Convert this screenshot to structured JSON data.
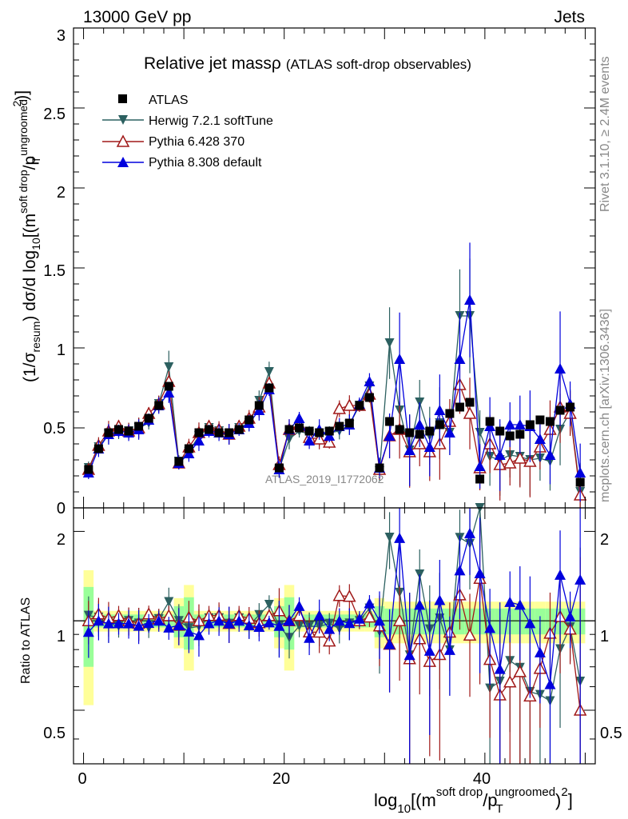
{
  "header": {
    "energy_label": "13000 GeV pp",
    "category_label": "Jets",
    "title_main": "Relative jet mass",
    "title_sym": "ρ",
    "title_sub": "(ATLAS soft-drop observables)",
    "side_rivet": "Rivet 3.1.10, ≥ 2.4M events",
    "side_mcplots": "mcplots.cern.ch [arXiv:1306.3436]",
    "watermark": "ATLAS_2019_I1772062"
  },
  "legend": {
    "placement": "top-left",
    "entries": [
      {
        "label": "ATLAS",
        "marker": "square-filled",
        "color": "#000000"
      },
      {
        "label": "Herwig 7.2.1 softTune",
        "marker": "triangle-down-filled",
        "color": "#2c6060"
      },
      {
        "label": "Pythia 6.428 370",
        "marker": "triangle-up-open",
        "color": "#a01818"
      },
      {
        "label": "Pythia 8.308 default",
        "marker": "triangle-up-filled",
        "color": "#0000dd"
      }
    ]
  },
  "axes": {
    "y_main_label_prefix": "(1/σ",
    "y_main_label_resum": "resum",
    "y_main_label_mid": ") dσ/d log",
    "y_main_label_10": "10",
    "y_main_label_m": "[(m",
    "y_main_label_sd": "soft drop",
    "y_main_label_slash": "/p",
    "y_main_label_ug": "ungroomed",
    "y_main_label_T": "T",
    "y_main_label_2": "2",
    "y_main_label_close": ")]",
    "y_ratio_label": "Ratio to ATLAS",
    "x_label_log": "log",
    "x_label_10": "10",
    "x_label_m": "[(m",
    "x_label_sd": "soft drop",
    "x_label_slash": "/p",
    "x_label_T": "T",
    "x_label_ug": "ungroomed",
    "x_label_close": ")",
    "x_label_2": "2",
    "x_label_end": "]",
    "y_main_ticks": [
      "0",
      "0.5",
      "1",
      "1.5",
      "2",
      "2.5",
      "3"
    ],
    "y_ratio_ticks": [
      "0.5",
      "1",
      "2"
    ],
    "x_ticks": [
      "0",
      "20",
      "40"
    ]
  },
  "chart_data": {
    "type": "scatter",
    "xlim": [
      -1,
      51
    ],
    "ylim_main": [
      0,
      3
    ],
    "ylim_ratio": [
      0.33,
      2.4
    ],
    "ratio_log": true,
    "grid": false,
    "x": [
      0.5,
      1.5,
      2.5,
      3.5,
      4.5,
      5.5,
      6.5,
      7.5,
      8.5,
      9.5,
      10.5,
      11.5,
      12.5,
      13.5,
      14.5,
      15.5,
      16.5,
      17.5,
      18.5,
      19.5,
      20.5,
      21.5,
      22.5,
      23.5,
      24.5,
      25.5,
      26.5,
      27.5,
      28.5,
      29.5,
      30.5,
      31.5,
      32.5,
      33.5,
      34.5,
      35.5,
      36.5,
      37.5,
      38.5,
      39.5,
      40.5,
      41.5,
      42.5,
      43.5,
      44.5,
      45.5,
      46.5,
      47.5,
      48.5,
      49.5
    ],
    "series": [
      {
        "name": "ATLAS",
        "values": [
          0.24,
          0.37,
          0.47,
          0.49,
          0.48,
          0.51,
          0.56,
          0.64,
          0.76,
          0.29,
          0.37,
          0.47,
          0.49,
          0.47,
          0.47,
          0.49,
          0.55,
          0.64,
          0.75,
          0.25,
          0.49,
          0.5,
          0.48,
          0.47,
          0.48,
          0.51,
          0.53,
          0.64,
          0.69,
          0.25,
          0.54,
          0.49,
          0.47,
          0.46,
          0.48,
          0.52,
          0.59,
          0.63,
          0.66,
          0.18,
          0.54,
          0.48,
          0.45,
          0.46,
          0.52,
          0.55,
          0.54,
          0.61,
          0.63,
          0.16
        ]
      },
      {
        "name": "Herwig 7.2.1 softTune",
        "values": [
          0.25,
          0.38,
          0.46,
          0.47,
          0.48,
          0.5,
          0.53,
          0.65,
          0.88,
          0.29,
          0.35,
          0.45,
          0.5,
          0.48,
          0.46,
          0.5,
          0.53,
          0.67,
          0.85,
          0.24,
          0.43,
          0.48,
          0.46,
          0.45,
          0.47,
          0.48,
          0.52,
          0.64,
          0.76,
          0.23,
          1.03,
          0.61,
          0.36,
          0.66,
          0.45,
          0.53,
          0.47,
          1.2,
          1.2,
          0.47,
          0.32,
          0.3,
          0.33,
          0.32,
          0.3,
          0.31,
          0.29,
          0.49,
          0.6,
          0.1
        ]
      },
      {
        "name": "Pythia 6.428 370",
        "values": [
          0.24,
          0.39,
          0.48,
          0.51,
          0.48,
          0.5,
          0.59,
          0.65,
          0.79,
          0.28,
          0.38,
          0.47,
          0.51,
          0.49,
          0.46,
          0.51,
          0.56,
          0.63,
          0.78,
          0.27,
          0.49,
          0.52,
          0.44,
          0.43,
          0.41,
          0.62,
          0.64,
          0.64,
          0.71,
          0.24,
          0.45,
          0.49,
          0.35,
          0.4,
          0.35,
          0.4,
          0.54,
          0.77,
          0.59,
          0.25,
          0.4,
          0.27,
          0.28,
          0.31,
          0.29,
          0.38,
          0.49,
          0.63,
          0.59,
          0.08
        ]
      },
      {
        "name": "Pythia 8.308 default",
        "values": [
          0.22,
          0.37,
          0.46,
          0.48,
          0.47,
          0.49,
          0.55,
          0.64,
          0.72,
          0.28,
          0.34,
          0.42,
          0.48,
          0.47,
          0.46,
          0.49,
          0.53,
          0.61,
          0.74,
          0.24,
          0.49,
          0.56,
          0.42,
          0.49,
          0.45,
          0.51,
          0.52,
          0.65,
          0.79,
          0.25,
          0.45,
          0.93,
          0.36,
          0.52,
          0.38,
          0.61,
          0.47,
          0.93,
          1.3,
          0.26,
          0.51,
          0.33,
          0.52,
          0.52,
          0.51,
          0.43,
          0.33,
          0.87,
          0.65,
          0.22
        ]
      }
    ]
  }
}
